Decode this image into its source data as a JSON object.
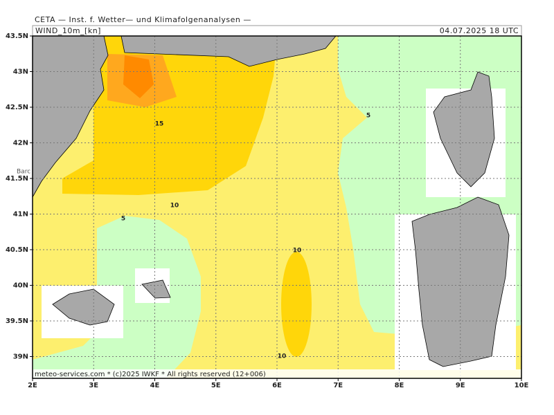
{
  "header": {
    "title": "CETA — Inst. f. Wetter— und Klimafolgenanalysen —",
    "variable": "WIND_10m_[kn]",
    "valid_time": "04.07.2025 18 UTC"
  },
  "map": {
    "lat_labels": [
      "43.5N",
      "43N",
      "42.5N",
      "42N",
      "41.5N",
      "41N",
      "40.5N",
      "40N",
      "39.5N",
      "39N"
    ],
    "lon_labels": [
      "2E",
      "3E",
      "4E",
      "5E",
      "6E",
      "7E",
      "8E",
      "9E",
      "10E"
    ],
    "place_labels": [
      "Barc"
    ],
    "contour_labels": [
      "15",
      "10",
      "5",
      "10",
      "5",
      "10"
    ]
  },
  "footer": {
    "text": "meteo-services.com * (c)2025 IWKF * All rights reserved (12+006)"
  }
}
